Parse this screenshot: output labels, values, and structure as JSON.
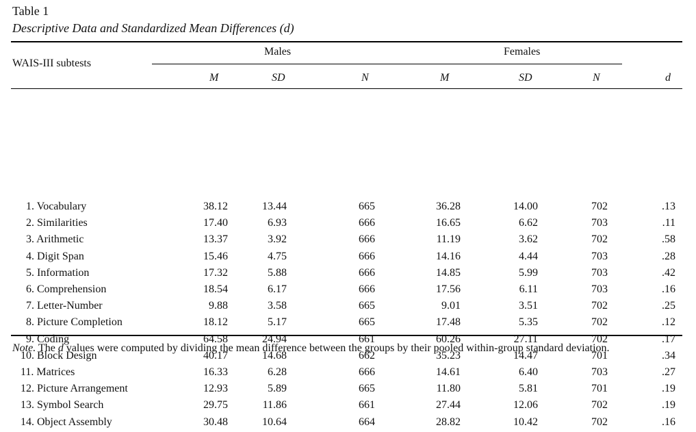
{
  "table": {
    "title": "Table 1",
    "subtitle": "Descriptive Data and Standardized Mean Differences (d)",
    "stub_header": "WAIS-III subtests",
    "groups": [
      "Males",
      "Females"
    ],
    "columns": [
      "M",
      "SD",
      "N",
      "M",
      "SD",
      "N",
      "d"
    ],
    "rows": [
      [
        "1. Vocabulary",
        "38.12",
        "13.44",
        "665",
        "36.28",
        "14.00",
        "702",
        ".13"
      ],
      [
        "2. Similarities",
        "17.40",
        "6.93",
        "666",
        "16.65",
        "6.62",
        "703",
        ".11"
      ],
      [
        "3. Arithmetic",
        "13.37",
        "3.92",
        "666",
        "11.19",
        "3.62",
        "702",
        ".58"
      ],
      [
        "4. Digit Span",
        "15.46",
        "4.75",
        "666",
        "14.16",
        "4.44",
        "703",
        ".28"
      ],
      [
        "5. Information",
        "17.32",
        "5.88",
        "666",
        "14.85",
        "5.99",
        "703",
        ".42"
      ],
      [
        "6. Comprehension",
        "18.54",
        "6.17",
        "666",
        "17.56",
        "6.11",
        "703",
        ".16"
      ],
      [
        "7. Letter-Number",
        "9.88",
        "3.58",
        "665",
        "9.01",
        "3.51",
        "702",
        ".25"
      ],
      [
        "8. Picture Completion",
        "18.12",
        "5.17",
        "665",
        "17.48",
        "5.35",
        "702",
        ".12"
      ],
      [
        "9. Coding",
        "64.58",
        "24.94",
        "661",
        "60.26",
        "27.11",
        "702",
        ".17"
      ],
      [
        "10. Block Design",
        "40.17",
        "14.68",
        "662",
        "35.23",
        "14.47",
        "701",
        ".34"
      ],
      [
        "11. Matrices",
        "16.33",
        "6.28",
        "666",
        "14.61",
        "6.40",
        "703",
        ".27"
      ],
      [
        "12. Picture Arrangement",
        "12.93",
        "5.89",
        "665",
        "11.80",
        "5.81",
        "701",
        ".19"
      ],
      [
        "13. Symbol Search",
        "29.75",
        "11.86",
        "661",
        "27.44",
        "12.06",
        "702",
        ".19"
      ],
      [
        "14. Object Assembly",
        "30.48",
        "10.64",
        "664",
        "28.82",
        "10.42",
        "702",
        ".16"
      ]
    ],
    "note_label": "Note.",
    "note_text_1": "The",
    "note_d": "d",
    "note_text_2": "values were computed by dividing the mean difference between the groups by their pooled within-group standard deviation."
  }
}
